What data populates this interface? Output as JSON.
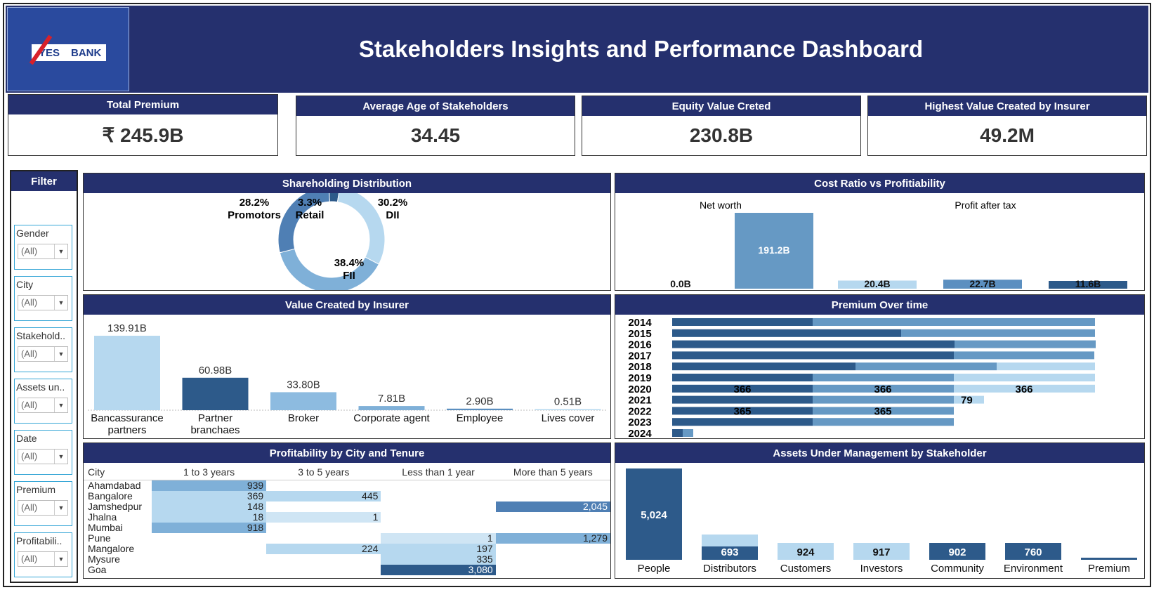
{
  "header": {
    "title": "Stakeholders Insights and Performance Dashboard",
    "logo_left": "YES",
    "logo_right": "BANK"
  },
  "kpis": [
    {
      "label": "Total Premium",
      "value": "₹ 245.9B"
    },
    {
      "label": "Average Age of Stakeholders",
      "value": "34.45"
    },
    {
      "label": "Equity Value Creted",
      "value": "230.8B"
    },
    {
      "label": "Highest Value Created by Insurer",
      "value": "49.2M"
    }
  ],
  "filter": {
    "title": "Filter",
    "items": [
      {
        "label": "Gender",
        "value": "(All)"
      },
      {
        "label": "City",
        "value": "(All)"
      },
      {
        "label": "Stakehold..",
        "value": "(All)"
      },
      {
        "label": "Assets un..",
        "value": "(All)"
      },
      {
        "label": "Date",
        "value": "(All)"
      },
      {
        "label": "Premium",
        "value": "(All)"
      },
      {
        "label": "Profitabili..",
        "value": "(All)"
      }
    ]
  },
  "panels": {
    "shareholding": "Shareholding Distribution",
    "cost_ratio": "Cost Ratio vs Profitiability",
    "value_created": "Value Created by  Insurer",
    "premium_time": "Premium Over time",
    "profitability": "Profitability by City and Tenure",
    "aum": "Assets Under Management by Stakeholder"
  },
  "colors": {
    "navy": "#25306e",
    "dark": "#2d5a8a",
    "mid": "#5b8fc0",
    "light": "#7fb0d8",
    "pale": "#b6d8ef",
    "faint": "#cfe5f4"
  },
  "chart_data": [
    {
      "id": "shareholding",
      "type": "pie",
      "slices": [
        {
          "name": "Promotors",
          "pct_label": "28.2%",
          "value": 28.2,
          "color": "#4f7fb4"
        },
        {
          "name": "Retail",
          "pct_label": "3.3%",
          "value": 3.3,
          "color": "#2d5a8a"
        },
        {
          "name": "DII",
          "pct_label": "30.2%",
          "value": 30.2,
          "color": "#b6d8ef"
        },
        {
          "name": "FII",
          "pct_label": "38.4%",
          "value": 38.4,
          "color": "#7fb0d8"
        }
      ]
    },
    {
      "id": "cost_ratio",
      "type": "bar",
      "group_labels": [
        "Net worth",
        "Profit after tax"
      ],
      "bars": [
        {
          "label": "0.0B",
          "value": 0.0,
          "color": "#5b8fc0"
        },
        {
          "label": "191.2B",
          "value": 191.2,
          "color": "#6699c4"
        },
        {
          "label": "20.4B",
          "value": 20.4,
          "color": "#b6d8ef"
        },
        {
          "label": "22.7B",
          "value": 22.7,
          "color": "#5b8fc0"
        },
        {
          "label": "11.6B",
          "value": 11.6,
          "color": "#2d5a8a"
        }
      ]
    },
    {
      "id": "value_created",
      "type": "bar",
      "categories": [
        "Bancassurance partners",
        "Partner branchaes",
        "Broker",
        "Corporate agent",
        "Employee",
        "Lives cover"
      ],
      "values": [
        139.91,
        60.98,
        33.8,
        7.81,
        2.9,
        0.51
      ],
      "labels": [
        "139.91B",
        "60.98B",
        "33.80B",
        "7.81B",
        "2.90B",
        "0.51B"
      ],
      "colors": [
        "#b6d8ef",
        "#2d5a8a",
        "#8dbbe0",
        "#7fb0d8",
        "#5b8fc0",
        "#b6d8ef"
      ]
    },
    {
      "id": "premium_time",
      "type": "bar",
      "orientation": "horizontal",
      "years": [
        "2014",
        "2015",
        "2016",
        "2017",
        "2018",
        "2019",
        "2020",
        "2021",
        "2022",
        "2023",
        "2024"
      ],
      "segments": [
        [
          {
            "v": 200,
            "c": "#2d5a8a"
          },
          {
            "v": 402,
            "c": "#6699c4"
          }
        ],
        [
          {
            "v": 326,
            "c": "#2d5a8a"
          },
          {
            "v": 276,
            "c": "#6699c4"
          }
        ],
        [
          {
            "v": 402,
            "c": "#2d5a8a"
          },
          {
            "v": 201,
            "c": "#6699c4"
          }
        ],
        [
          {
            "v": 401,
            "c": "#2d5a8a"
          },
          {
            "v": 200,
            "c": "#6699c4"
          }
        ],
        [
          {
            "v": 261,
            "c": "#2d5a8a"
          },
          {
            "v": 201,
            "c": "#6699c4"
          },
          {
            "v": 140,
            "c": "#b6d8ef"
          }
        ],
        [
          {
            "v": 200,
            "c": "#2d5a8a"
          },
          {
            "v": 201,
            "c": "#6699c4"
          },
          {
            "v": 201,
            "c": "#b6d8ef"
          }
        ],
        [
          {
            "v": 200,
            "c": "#2d5a8a",
            "t": "366"
          },
          {
            "v": 201,
            "c": "#6699c4",
            "t": "366"
          },
          {
            "v": 201,
            "c": "#b6d8ef",
            "t": "366"
          }
        ],
        [
          {
            "v": 200,
            "c": "#2d5a8a"
          },
          {
            "v": 201,
            "c": "#6699c4"
          },
          {
            "v": 43,
            "c": "#b6d8ef",
            "t": "79"
          }
        ],
        [
          {
            "v": 200,
            "c": "#2d5a8a",
            "t": "365"
          },
          {
            "v": 201,
            "c": "#6699c4",
            "t": "365"
          }
        ],
        [
          {
            "v": 200,
            "c": "#2d5a8a"
          },
          {
            "v": 201,
            "c": "#6699c4"
          }
        ],
        [
          {
            "v": 15,
            "c": "#2d5a8a"
          },
          {
            "v": 15,
            "c": "#6699c4"
          }
        ]
      ]
    },
    {
      "id": "profitability",
      "type": "table",
      "columns": [
        "City",
        "1 to 3 years",
        "3 to 5 years",
        "Less than 1 year",
        "More than 5 years"
      ],
      "rows": [
        {
          "city": "Ahamdabad",
          "cells": [
            {
              "v": "939",
              "c": "#7fb0d8"
            },
            null,
            null,
            null
          ]
        },
        {
          "city": "Bangalore",
          "cells": [
            {
              "v": "369",
              "c": "#b6d8ef"
            },
            {
              "v": "445",
              "c": "#b6d8ef"
            },
            null,
            null
          ]
        },
        {
          "city": "Jamshedpur",
          "cells": [
            {
              "v": "148",
              "c": "#b6d8ef"
            },
            null,
            null,
            {
              "v": "2,045",
              "c": "#4f7fb4"
            }
          ]
        },
        {
          "city": "Jhalna",
          "cells": [
            {
              "v": "18",
              "c": "#b6d8ef"
            },
            {
              "v": "1",
              "c": "#cfe5f4"
            },
            null,
            null
          ]
        },
        {
          "city": "Mumbai",
          "cells": [
            {
              "v": "918",
              "c": "#7fb0d8"
            },
            null,
            null,
            null
          ]
        },
        {
          "city": "Pune",
          "cells": [
            null,
            null,
            {
              "v": "1",
              "c": "#cfe5f4"
            },
            {
              "v": "1,279",
              "c": "#7fb0d8"
            }
          ]
        },
        {
          "city": "Mangalore",
          "cells": [
            null,
            {
              "v": "224",
              "c": "#b6d8ef"
            },
            {
              "v": "197",
              "c": "#b6d8ef"
            },
            null
          ]
        },
        {
          "city": "Mysure",
          "cells": [
            null,
            null,
            {
              "v": "335",
              "c": "#b6d8ef"
            },
            null
          ]
        },
        {
          "city": "Goa",
          "cells": [
            null,
            null,
            {
              "v": "3,080",
              "c": "#2d5a8a"
            },
            null
          ]
        }
      ]
    },
    {
      "id": "aum",
      "type": "bar",
      "categories": [
        "People",
        "Distributors",
        "Customers",
        "Investors",
        "Community",
        "Environment",
        "Premium"
      ],
      "values": [
        5024,
        693,
        924,
        917,
        902,
        760,
        0
      ],
      "labels": [
        "5,024",
        "693",
        "924",
        "917",
        "902",
        "760",
        ""
      ],
      "colors": [
        "#2d5a8a",
        "#2d5a8a",
        "#b6d8ef",
        "#b6d8ef",
        "#2d5a8a",
        "#2d5a8a",
        "#2d5a8a"
      ],
      "label_colors": [
        "#ffffff",
        "#ffffff",
        "#111111",
        "#111111",
        "#ffffff",
        "#ffffff",
        "#111111"
      ]
    }
  ]
}
